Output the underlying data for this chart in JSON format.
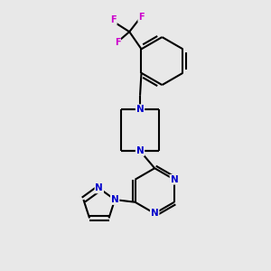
{
  "bg_color": "#e8e8e8",
  "bond_color": "#000000",
  "N_color": "#0000cc",
  "F_color": "#cc00cc",
  "lw": 1.5,
  "fs": 7.5,
  "xlim": [
    0,
    10
  ],
  "ylim": [
    0,
    10
  ]
}
